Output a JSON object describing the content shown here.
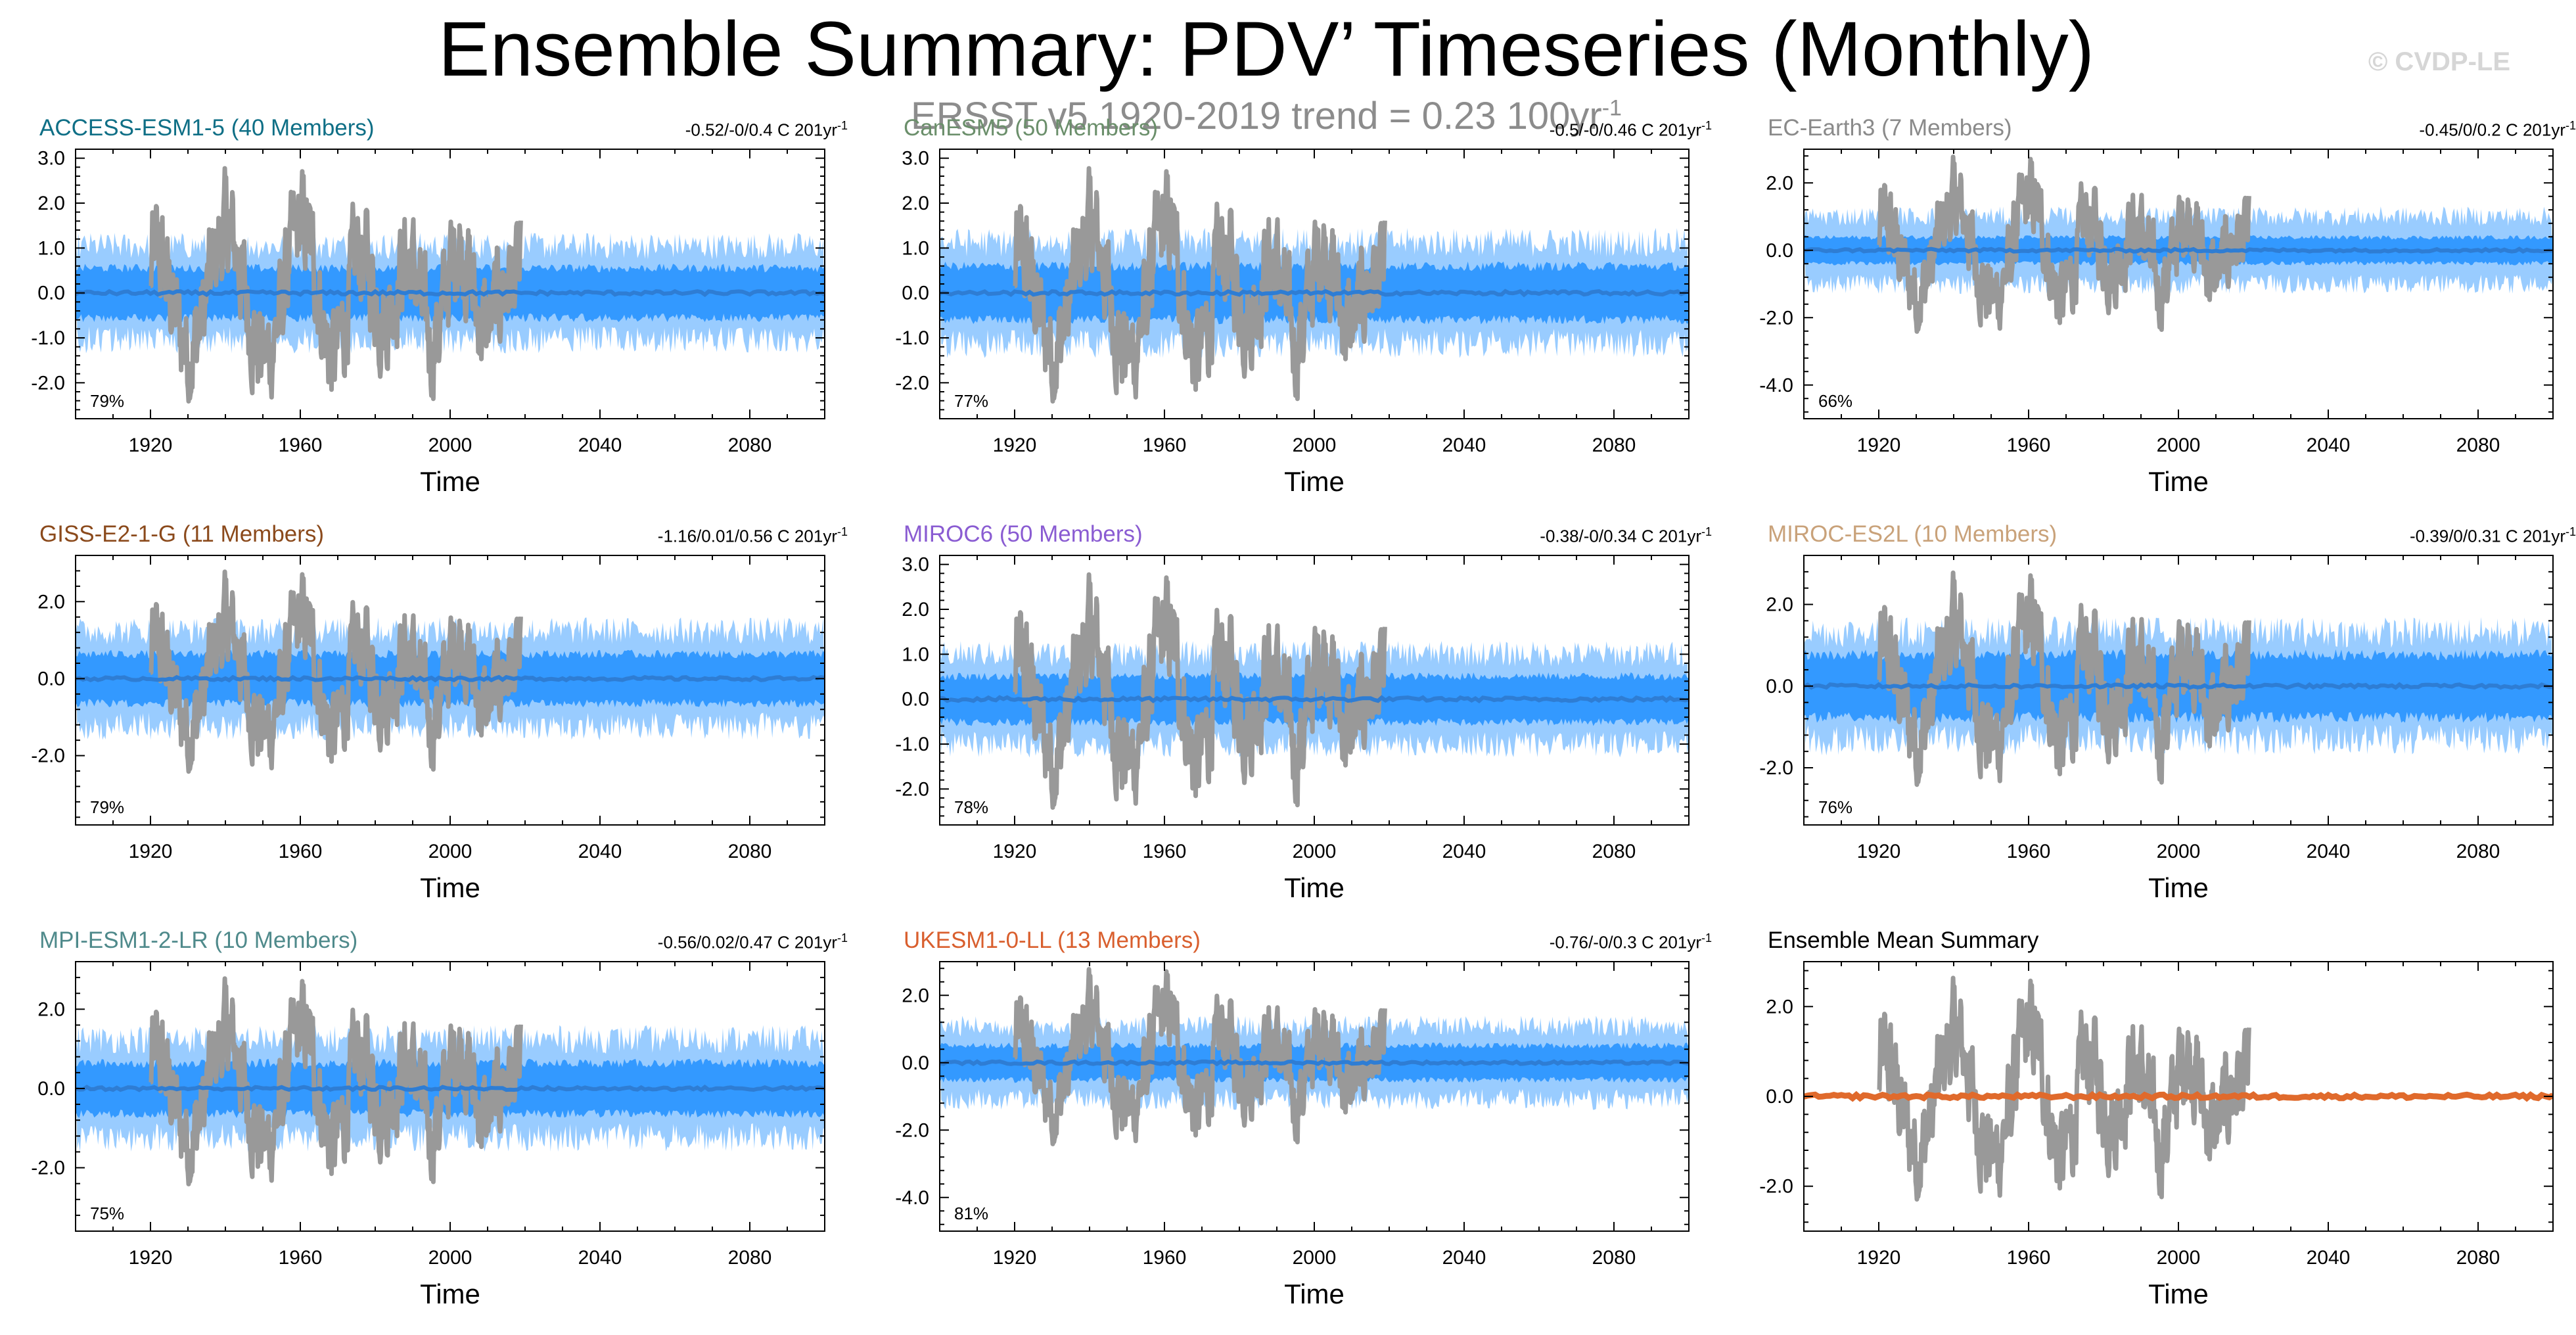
{
  "title": "Ensemble Summary: PDV’ Timeseries (Monthly)",
  "subtitle": {
    "text": "ERSST v5 1920-2019 trend = 0.23 100yr",
    "superscript": "-1"
  },
  "credit": "© CVDP-LE",
  "colors": {
    "observations": "#999999",
    "member_spread_light": "#99ccff",
    "member_spread_dark": "#3399ff",
    "ensemble_mean": "#2e7dd4",
    "summary_mean": "#e06a2c",
    "titles": {
      "ACCESS-ESM1-5": "#0f6f86",
      "CanESM5": "#6b8f6b",
      "EC-Earth3": "#8a8a8a",
      "GISS-E2-1-G": "#8b4a1c",
      "MIROC6": "#8a5cd2",
      "MIROC-ES2L": "#c9a27a",
      "MPI-ESM1-2-LR": "#4f8a8b",
      "UKESM1-0-LL": "#d95f2e",
      "Ensemble Mean Summary": "#000000"
    }
  },
  "chart_data": [
    {
      "type": "line",
      "title": "ACCESS-ESM1-5 (40 Members)",
      "stats_text": "-0.52/-0/0.4 C 201yr",
      "stats_superscript": "-1",
      "percent_label": "79%",
      "xlabel": "Time",
      "xlim": [
        1900,
        2100
      ],
      "xticks": [
        1920,
        1960,
        2000,
        2040,
        2080
      ],
      "ylim": [
        -2.8,
        3.2
      ],
      "yticks": [
        -2.0,
        -1.0,
        0.0,
        1.0,
        2.0,
        3.0
      ],
      "ytick_labels": [
        "-2.0",
        "-1.0",
        "0.0",
        "1.0",
        "2.0",
        "3.0"
      ],
      "spread_inner": 0.65,
      "spread_outer": 1.35,
      "obs_period": [
        1920,
        2019
      ],
      "ensemble_mean": 0.0
    },
    {
      "type": "line",
      "title": "CanESM5 (50 Members)",
      "stats_text": "-0.5/-0/0.46 C 201yr",
      "stats_superscript": "-1",
      "percent_label": "77%",
      "xlabel": "Time",
      "xlim": [
        1900,
        2100
      ],
      "xticks": [
        1920,
        1960,
        2000,
        2040,
        2080
      ],
      "ylim": [
        -2.8,
        3.2
      ],
      "yticks": [
        -2.0,
        -1.0,
        0.0,
        1.0,
        2.0,
        3.0
      ],
      "ytick_labels": [
        "-2.0",
        "-1.0",
        "0.0",
        "1.0",
        "2.0",
        "3.0"
      ],
      "spread_inner": 0.7,
      "spread_outer": 1.45,
      "obs_period": [
        1920,
        2019
      ],
      "ensemble_mean": 0.0
    },
    {
      "type": "line",
      "title": "EC-Earth3 (7 Members)",
      "stats_text": "-0.45/0/0.2 C 201yr",
      "stats_superscript": "-1",
      "percent_label": "66%",
      "xlabel": "Time",
      "xlim": [
        1900,
        2100
      ],
      "xticks": [
        1920,
        1960,
        2000,
        2040,
        2080
      ],
      "ylim": [
        -5.0,
        3.0
      ],
      "yticks": [
        -4.0,
        -2.0,
        0.0,
        2.0
      ],
      "ytick_labels": [
        "-4.0",
        "-2.0",
        "0.0",
        "2.0"
      ],
      "spread_inner": 0.45,
      "spread_outer": 1.3,
      "obs_period": [
        1920,
        2019
      ],
      "ensemble_mean": 0.0
    },
    {
      "type": "line",
      "title": "GISS-E2-1-G (11 Members)",
      "stats_text": "-1.16/0.01/0.56 C 201yr",
      "stats_superscript": "-1",
      "percent_label": "79%",
      "xlabel": "Time",
      "xlim": [
        1900,
        2100
      ],
      "xticks": [
        1920,
        1960,
        2000,
        2040,
        2080
      ],
      "ylim": [
        -3.8,
        3.2
      ],
      "yticks": [
        -2.0,
        0.0,
        2.0
      ],
      "ytick_labels": [
        "-2.0",
        "0.0",
        "2.0"
      ],
      "spread_inner": 0.75,
      "spread_outer": 1.6,
      "obs_period": [
        1920,
        2019
      ],
      "ensemble_mean": 0.0
    },
    {
      "type": "line",
      "title": "MIROC6 (50 Members)",
      "stats_text": "-0.38/-0/0.34 C 201yr",
      "stats_superscript": "-1",
      "percent_label": "78%",
      "xlabel": "Time",
      "xlim": [
        1900,
        2100
      ],
      "xticks": [
        1920,
        1960,
        2000,
        2040,
        2080
      ],
      "ylim": [
        -2.8,
        3.2
      ],
      "yticks": [
        -2.0,
        -1.0,
        0.0,
        1.0,
        2.0,
        3.0
      ],
      "ytick_labels": [
        "-2.0",
        "-1.0",
        "0.0",
        "1.0",
        "2.0",
        "3.0"
      ],
      "spread_inner": 0.6,
      "spread_outer": 1.3,
      "obs_period": [
        1920,
        2019
      ],
      "ensemble_mean": 0.0
    },
    {
      "type": "line",
      "title": "MIROC-ES2L (10 Members)",
      "stats_text": "-0.39/0/0.31 C 201yr",
      "stats_superscript": "-1",
      "percent_label": "76%",
      "xlabel": "Time",
      "xlim": [
        1900,
        2100
      ],
      "xticks": [
        1920,
        1960,
        2000,
        2040,
        2080
      ],
      "ylim": [
        -3.4,
        3.2
      ],
      "yticks": [
        -2.0,
        0.0,
        2.0
      ],
      "ytick_labels": [
        "-2.0",
        "0.0",
        "2.0"
      ],
      "spread_inner": 0.9,
      "spread_outer": 1.7,
      "obs_period": [
        1920,
        2019
      ],
      "ensemble_mean": 0.0
    },
    {
      "type": "line",
      "title": "MPI-ESM1-2-LR (10 Members)",
      "stats_text": "-0.56/0.02/0.47 C 201yr",
      "stats_superscript": "-1",
      "percent_label": "75%",
      "xlabel": "Time",
      "xlim": [
        1900,
        2100
      ],
      "xticks": [
        1920,
        1960,
        2000,
        2040,
        2080
      ],
      "ylim": [
        -3.6,
        3.2
      ],
      "yticks": [
        -2.0,
        0.0,
        2.0
      ],
      "ytick_labels": [
        "-2.0",
        "0.0",
        "2.0"
      ],
      "spread_inner": 0.75,
      "spread_outer": 1.6,
      "obs_period": [
        1920,
        2019
      ],
      "ensemble_mean": 0.0
    },
    {
      "type": "line",
      "title": "UKESM1-0-LL (13 Members)",
      "stats_text": "-0.76/-0/0.3 C 201yr",
      "stats_superscript": "-1",
      "percent_label": "81%",
      "xlabel": "Time",
      "xlim": [
        1900,
        2100
      ],
      "xticks": [
        1920,
        1960,
        2000,
        2040,
        2080
      ],
      "ylim": [
        -5.0,
        3.0
      ],
      "yticks": [
        -4.0,
        -2.0,
        0.0,
        2.0
      ],
      "ytick_labels": [
        "-4.0",
        "-2.0",
        "0.0",
        "2.0"
      ],
      "spread_inner": 0.6,
      "spread_outer": 1.4,
      "obs_period": [
        1920,
        2019
      ],
      "ensemble_mean": 0.0
    },
    {
      "type": "line",
      "title": "Ensemble Mean Summary",
      "stats_text": "",
      "stats_superscript": "",
      "percent_label": "",
      "xlabel": "Time",
      "xlim": [
        1900,
        2100
      ],
      "xticks": [
        1920,
        1960,
        2000,
        2040,
        2080
      ],
      "ylim": [
        -3.0,
        3.0
      ],
      "yticks": [
        -2.0,
        0.0,
        2.0
      ],
      "ytick_labels": [
        "-2.0",
        "0.0",
        "2.0"
      ],
      "spread_inner": 0,
      "spread_outer": 0,
      "obs_period": [
        1920,
        2019
      ],
      "ensemble_mean": 0.0,
      "is_summary": true
    }
  ]
}
